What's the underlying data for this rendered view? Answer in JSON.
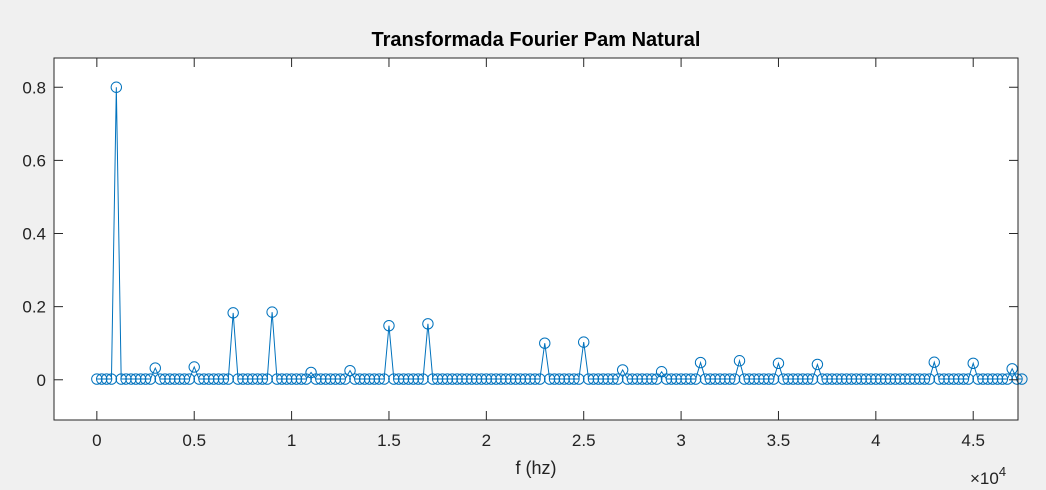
{
  "chart_data": {
    "type": "stem",
    "title": "Transformada Fourier Pam Natural",
    "xlabel": "f (hz)",
    "ylabel": "",
    "x_exponent_label": {
      "base": "×10",
      "power": "4"
    },
    "xlim": [
      -2200,
      47300
    ],
    "ylim": [
      -0.11,
      0.88
    ],
    "x_ticks": [
      0,
      5000,
      10000,
      15000,
      20000,
      25000,
      30000,
      35000,
      40000,
      45000
    ],
    "x_tick_labels": [
      "0",
      "0.5",
      "1",
      "1.5",
      "2",
      "2.5",
      "3",
      "3.5",
      "4",
      "4.5"
    ],
    "y_ticks": [
      0,
      0.2,
      0.4,
      0.6,
      0.8
    ],
    "y_tick_labels": [
      "0",
      "0.2",
      "0.4",
      "0.6",
      "0.8"
    ],
    "grid": false,
    "line_color": "#0072BD",
    "x_step": 250,
    "x_start": 0,
    "x_end": 47500,
    "baseline_value": 0.002,
    "peaks": [
      {
        "x": 1000,
        "y": 0.8
      },
      {
        "x": 3000,
        "y": 0.032
      },
      {
        "x": 5000,
        "y": 0.035
      },
      {
        "x": 7000,
        "y": 0.183
      },
      {
        "x": 9000,
        "y": 0.185
      },
      {
        "x": 11000,
        "y": 0.02
      },
      {
        "x": 13000,
        "y": 0.025
      },
      {
        "x": 15000,
        "y": 0.148
      },
      {
        "x": 17000,
        "y": 0.153
      },
      {
        "x": 23000,
        "y": 0.1
      },
      {
        "x": 25000,
        "y": 0.103
      },
      {
        "x": 27000,
        "y": 0.027
      },
      {
        "x": 29000,
        "y": 0.022
      },
      {
        "x": 31000,
        "y": 0.047
      },
      {
        "x": 33000,
        "y": 0.052
      },
      {
        "x": 35000,
        "y": 0.045
      },
      {
        "x": 37000,
        "y": 0.042
      },
      {
        "x": 43000,
        "y": 0.048
      },
      {
        "x": 45000,
        "y": 0.045
      },
      {
        "x": 47000,
        "y": 0.03
      }
    ]
  }
}
